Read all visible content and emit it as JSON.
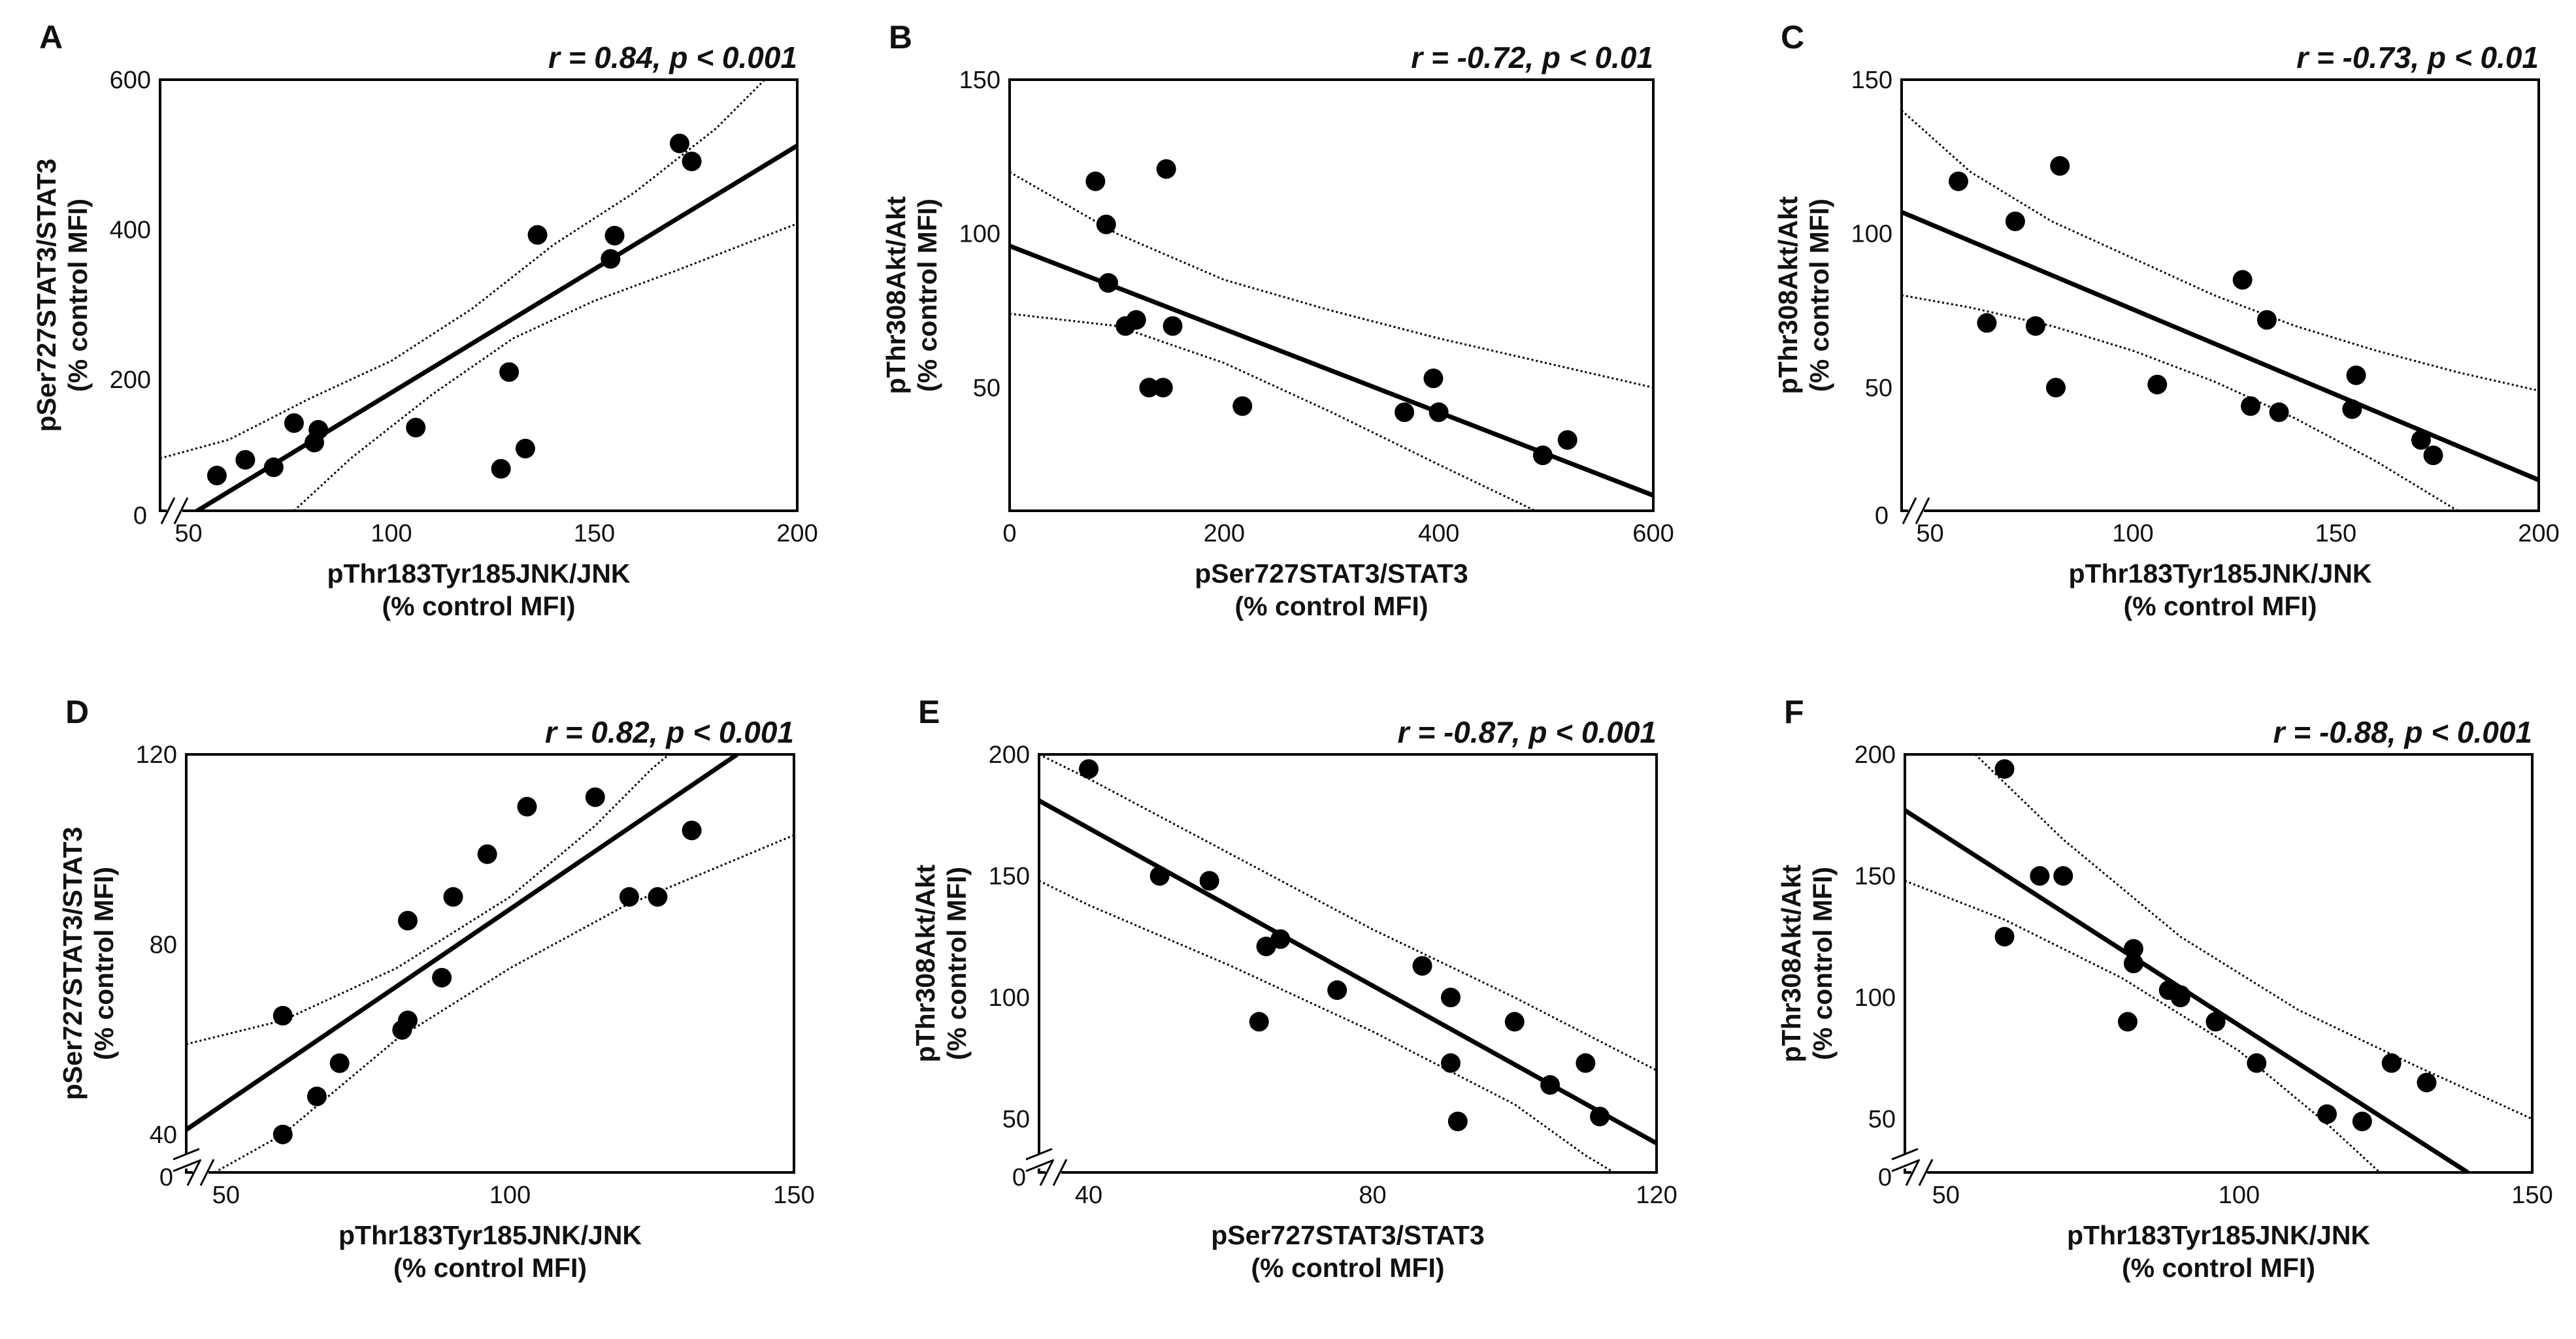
{
  "chart_data": [
    {
      "panel": "A",
      "type": "scatter",
      "stat": "r = 0.84, p < 0.001",
      "xlabel": "pThr183Tyr185JNK/JNK",
      "xunit": "(% control MFI)",
      "ylabel": "pSer727STAT3/STAT3",
      "yunit": "(% control MFI)",
      "xlim": [
        43,
        200
      ],
      "ylim": [
        25,
        600
      ],
      "xticks": [
        50,
        100,
        150,
        200
      ],
      "yticks": [
        200,
        400,
        600
      ],
      "zero_label": "0",
      "break_x": true,
      "break_y": false,
      "points": [
        [
          57,
          72
        ],
        [
          64,
          93
        ],
        [
          71,
          83
        ],
        [
          76,
          142
        ],
        [
          81,
          116
        ],
        [
          82,
          133
        ],
        [
          106,
          136
        ],
        [
          127,
          81
        ],
        [
          129,
          210
        ],
        [
          133,
          108
        ],
        [
          136,
          393
        ],
        [
          154,
          361
        ],
        [
          155,
          392
        ],
        [
          171,
          515
        ],
        [
          174,
          491
        ]
      ],
      "fit": [
        [
          47,
          8
        ],
        [
          200,
          512
        ]
      ],
      "ci_upper": [
        [
          43,
          95
        ],
        [
          60,
          120
        ],
        [
          80,
          175
        ],
        [
          100,
          225
        ],
        [
          120,
          295
        ],
        [
          140,
          380
        ],
        [
          160,
          450
        ],
        [
          180,
          535
        ],
        [
          192,
          600
        ]
      ],
      "ci_lower": [
        [
          76,
          25
        ],
        [
          90,
          95
        ],
        [
          110,
          180
        ],
        [
          130,
          255
        ],
        [
          150,
          305
        ],
        [
          170,
          345
        ],
        [
          200,
          408
        ]
      ]
    },
    {
      "panel": "B",
      "type": "scatter",
      "stat": "r = -0.72, p < 0.01",
      "xlabel": "pSer727STAT3/STAT3",
      "xunit": "(% control MFI)",
      "ylabel": "pThr308Akt/Akt",
      "yunit": "(% control MFI)",
      "xlim": [
        0,
        600
      ],
      "ylim": [
        10,
        150
      ],
      "xticks": [
        0,
        200,
        400,
        600
      ],
      "yticks": [
        50,
        100,
        150
      ],
      "zero_label": "",
      "break_x": false,
      "break_y": false,
      "points": [
        [
          80,
          117
        ],
        [
          90,
          103
        ],
        [
          92,
          84
        ],
        [
          108,
          70
        ],
        [
          118,
          72
        ],
        [
          130,
          50
        ],
        [
          143,
          50
        ],
        [
          146,
          121
        ],
        [
          152,
          70
        ],
        [
          217,
          44
        ],
        [
          368,
          42
        ],
        [
          395,
          53
        ],
        [
          400,
          42
        ],
        [
          497,
          28
        ],
        [
          520,
          33
        ]
      ],
      "fit": [
        [
          0,
          96
        ],
        [
          600,
          15
        ]
      ],
      "ci_upper": [
        [
          0,
          120
        ],
        [
          100,
          100
        ],
        [
          200,
          85
        ],
        [
          300,
          75
        ],
        [
          400,
          66
        ],
        [
          500,
          58
        ],
        [
          600,
          50
        ]
      ],
      "ci_lower": [
        [
          0,
          74
        ],
        [
          100,
          70
        ],
        [
          200,
          58
        ],
        [
          300,
          42
        ],
        [
          400,
          25
        ],
        [
          490,
          10
        ]
      ]
    },
    {
      "panel": "C",
      "type": "scatter",
      "stat": "r = -0.73, p < 0.01",
      "xlabel": "pThr183Tyr185JNK/JNK",
      "xunit": "(% control MFI)",
      "ylabel": "pThr308Akt/Akt",
      "yunit": "(% control MFI)",
      "xlim": [
        43,
        200
      ],
      "ylim": [
        10,
        150
      ],
      "xticks": [
        50,
        100,
        150,
        200
      ],
      "yticks": [
        50,
        100,
        150
      ],
      "zero_label": "0",
      "break_x": true,
      "break_y": false,
      "points": [
        [
          57,
          117
        ],
        [
          64,
          71
        ],
        [
          71,
          104
        ],
        [
          76,
          70
        ],
        [
          81,
          50
        ],
        [
          82,
          122
        ],
        [
          106,
          51
        ],
        [
          127,
          85
        ],
        [
          129,
          44
        ],
        [
          133,
          72
        ],
        [
          136,
          42
        ],
        [
          154,
          43
        ],
        [
          155,
          54
        ],
        [
          171,
          33
        ],
        [
          174,
          28
        ]
      ],
      "fit": [
        [
          43,
          107
        ],
        [
          200,
          20
        ]
      ],
      "ci_upper": [
        [
          43,
          140
        ],
        [
          60,
          120
        ],
        [
          80,
          104
        ],
        [
          100,
          92
        ],
        [
          120,
          80
        ],
        [
          140,
          70
        ],
        [
          160,
          62
        ],
        [
          180,
          55
        ],
        [
          200,
          49
        ]
      ],
      "ci_lower": [
        [
          43,
          80
        ],
        [
          60,
          76
        ],
        [
          80,
          70
        ],
        [
          100,
          62
        ],
        [
          120,
          52
        ],
        [
          140,
          40
        ],
        [
          160,
          26
        ],
        [
          180,
          10
        ]
      ]
    },
    {
      "panel": "D",
      "type": "scatter",
      "stat": "r = 0.82, p < 0.001",
      "xlabel": "pThr183Tyr185JNK/JNK",
      "xunit": "(% control MFI)",
      "ylabel": "pSer727STAT3/STAT3",
      "yunit": "(% control MFI)",
      "xlim": [
        43,
        150
      ],
      "ylim": [
        32,
        120
      ],
      "xticks": [
        50,
        100,
        150
      ],
      "yticks": [
        40,
        80,
        120
      ],
      "zero_label": "0",
      "break_x": true,
      "break_y": true,
      "points": [
        [
          60,
          65
        ],
        [
          60,
          40
        ],
        [
          66,
          48
        ],
        [
          70,
          55
        ],
        [
          81,
          62
        ],
        [
          82,
          64
        ],
        [
          82,
          85
        ],
        [
          88,
          73
        ],
        [
          90,
          90
        ],
        [
          96,
          99
        ],
        [
          103,
          109
        ],
        [
          115,
          111
        ],
        [
          121,
          90
        ],
        [
          126,
          90
        ],
        [
          132,
          104
        ]
      ],
      "fit": [
        [
          43,
          41
        ],
        [
          140,
          120
        ]
      ],
      "ci_upper": [
        [
          43,
          59
        ],
        [
          60,
          64
        ],
        [
          80,
          75
        ],
        [
          100,
          90
        ],
        [
          115,
          105
        ],
        [
          125,
          117
        ],
        [
          128,
          120
        ]
      ],
      "ci_lower": [
        [
          48,
          32
        ],
        [
          60,
          40
        ],
        [
          80,
          60
        ],
        [
          100,
          75
        ],
        [
          120,
          88
        ],
        [
          140,
          98
        ],
        [
          150,
          103
        ]
      ]
    },
    {
      "panel": "E",
      "type": "scatter",
      "stat": "r = -0.87, p < 0.001",
      "xlabel": "pSer727STAT3/STAT3",
      "xunit": "(% control MFI)",
      "ylabel": "pThr308Akt/Akt",
      "yunit": "(% control MFI)",
      "xlim": [
        33,
        120
      ],
      "ylim": [
        28,
        200
      ],
      "xticks": [
        40,
        80,
        120
      ],
      "yticks": [
        50,
        100,
        150,
        200
      ],
      "zero_label": "0",
      "break_x": true,
      "break_y": true,
      "points": [
        [
          40,
          194
        ],
        [
          50,
          150
        ],
        [
          57,
          148
        ],
        [
          64,
          90
        ],
        [
          65,
          121
        ],
        [
          67,
          124
        ],
        [
          75,
          103
        ],
        [
          87,
          113
        ],
        [
          91,
          100
        ],
        [
          91,
          73
        ],
        [
          92,
          49
        ],
        [
          100,
          90
        ],
        [
          105,
          64
        ],
        [
          110,
          73
        ],
        [
          112,
          51
        ]
      ],
      "fit": [
        [
          33,
          181
        ],
        [
          120,
          40
        ]
      ],
      "ci_upper": [
        [
          33,
          200
        ],
        [
          40,
          190
        ],
        [
          60,
          159
        ],
        [
          80,
          128
        ],
        [
          100,
          100
        ],
        [
          120,
          70
        ]
      ],
      "ci_lower": [
        [
          33,
          148
        ],
        [
          40,
          138
        ],
        [
          60,
          113
        ],
        [
          80,
          86
        ],
        [
          100,
          56
        ],
        [
          110,
          35
        ],
        [
          114,
          28
        ]
      ]
    },
    {
      "panel": "F",
      "type": "scatter",
      "stat": "r = -0.88, p < 0.001",
      "xlabel": "pThr183Tyr185JNK/JNK",
      "xunit": "(% control MFI)",
      "ylabel": "pThr308Akt/Akt",
      "yunit": "(% control MFI)",
      "xlim": [
        43,
        150
      ],
      "ylim": [
        28,
        200
      ],
      "xticks": [
        50,
        100,
        150
      ],
      "yticks": [
        50,
        100,
        150,
        200
      ],
      "zero_label": "0",
      "break_x": true,
      "break_y": true,
      "points": [
        [
          60,
          194
        ],
        [
          60,
          125
        ],
        [
          66,
          150
        ],
        [
          70,
          150
        ],
        [
          81,
          90
        ],
        [
          82,
          120
        ],
        [
          82,
          114
        ],
        [
          88,
          103
        ],
        [
          90,
          100
        ],
        [
          90,
          101
        ],
        [
          96,
          90
        ],
        [
          103,
          73
        ],
        [
          115,
          52
        ],
        [
          121,
          49
        ],
        [
          126,
          73
        ],
        [
          132,
          65
        ]
      ],
      "fit": [
        [
          43,
          177
        ],
        [
          139,
          28
        ]
      ],
      "ci_upper": [
        [
          55,
          200
        ],
        [
          70,
          165
        ],
        [
          90,
          125
        ],
        [
          110,
          95
        ],
        [
          130,
          72
        ],
        [
          150,
          50
        ]
      ],
      "ci_lower": [
        [
          43,
          148
        ],
        [
          60,
          132
        ],
        [
          80,
          108
        ],
        [
          100,
          78
        ],
        [
          115,
          48
        ],
        [
          124,
          28
        ]
      ]
    }
  ]
}
